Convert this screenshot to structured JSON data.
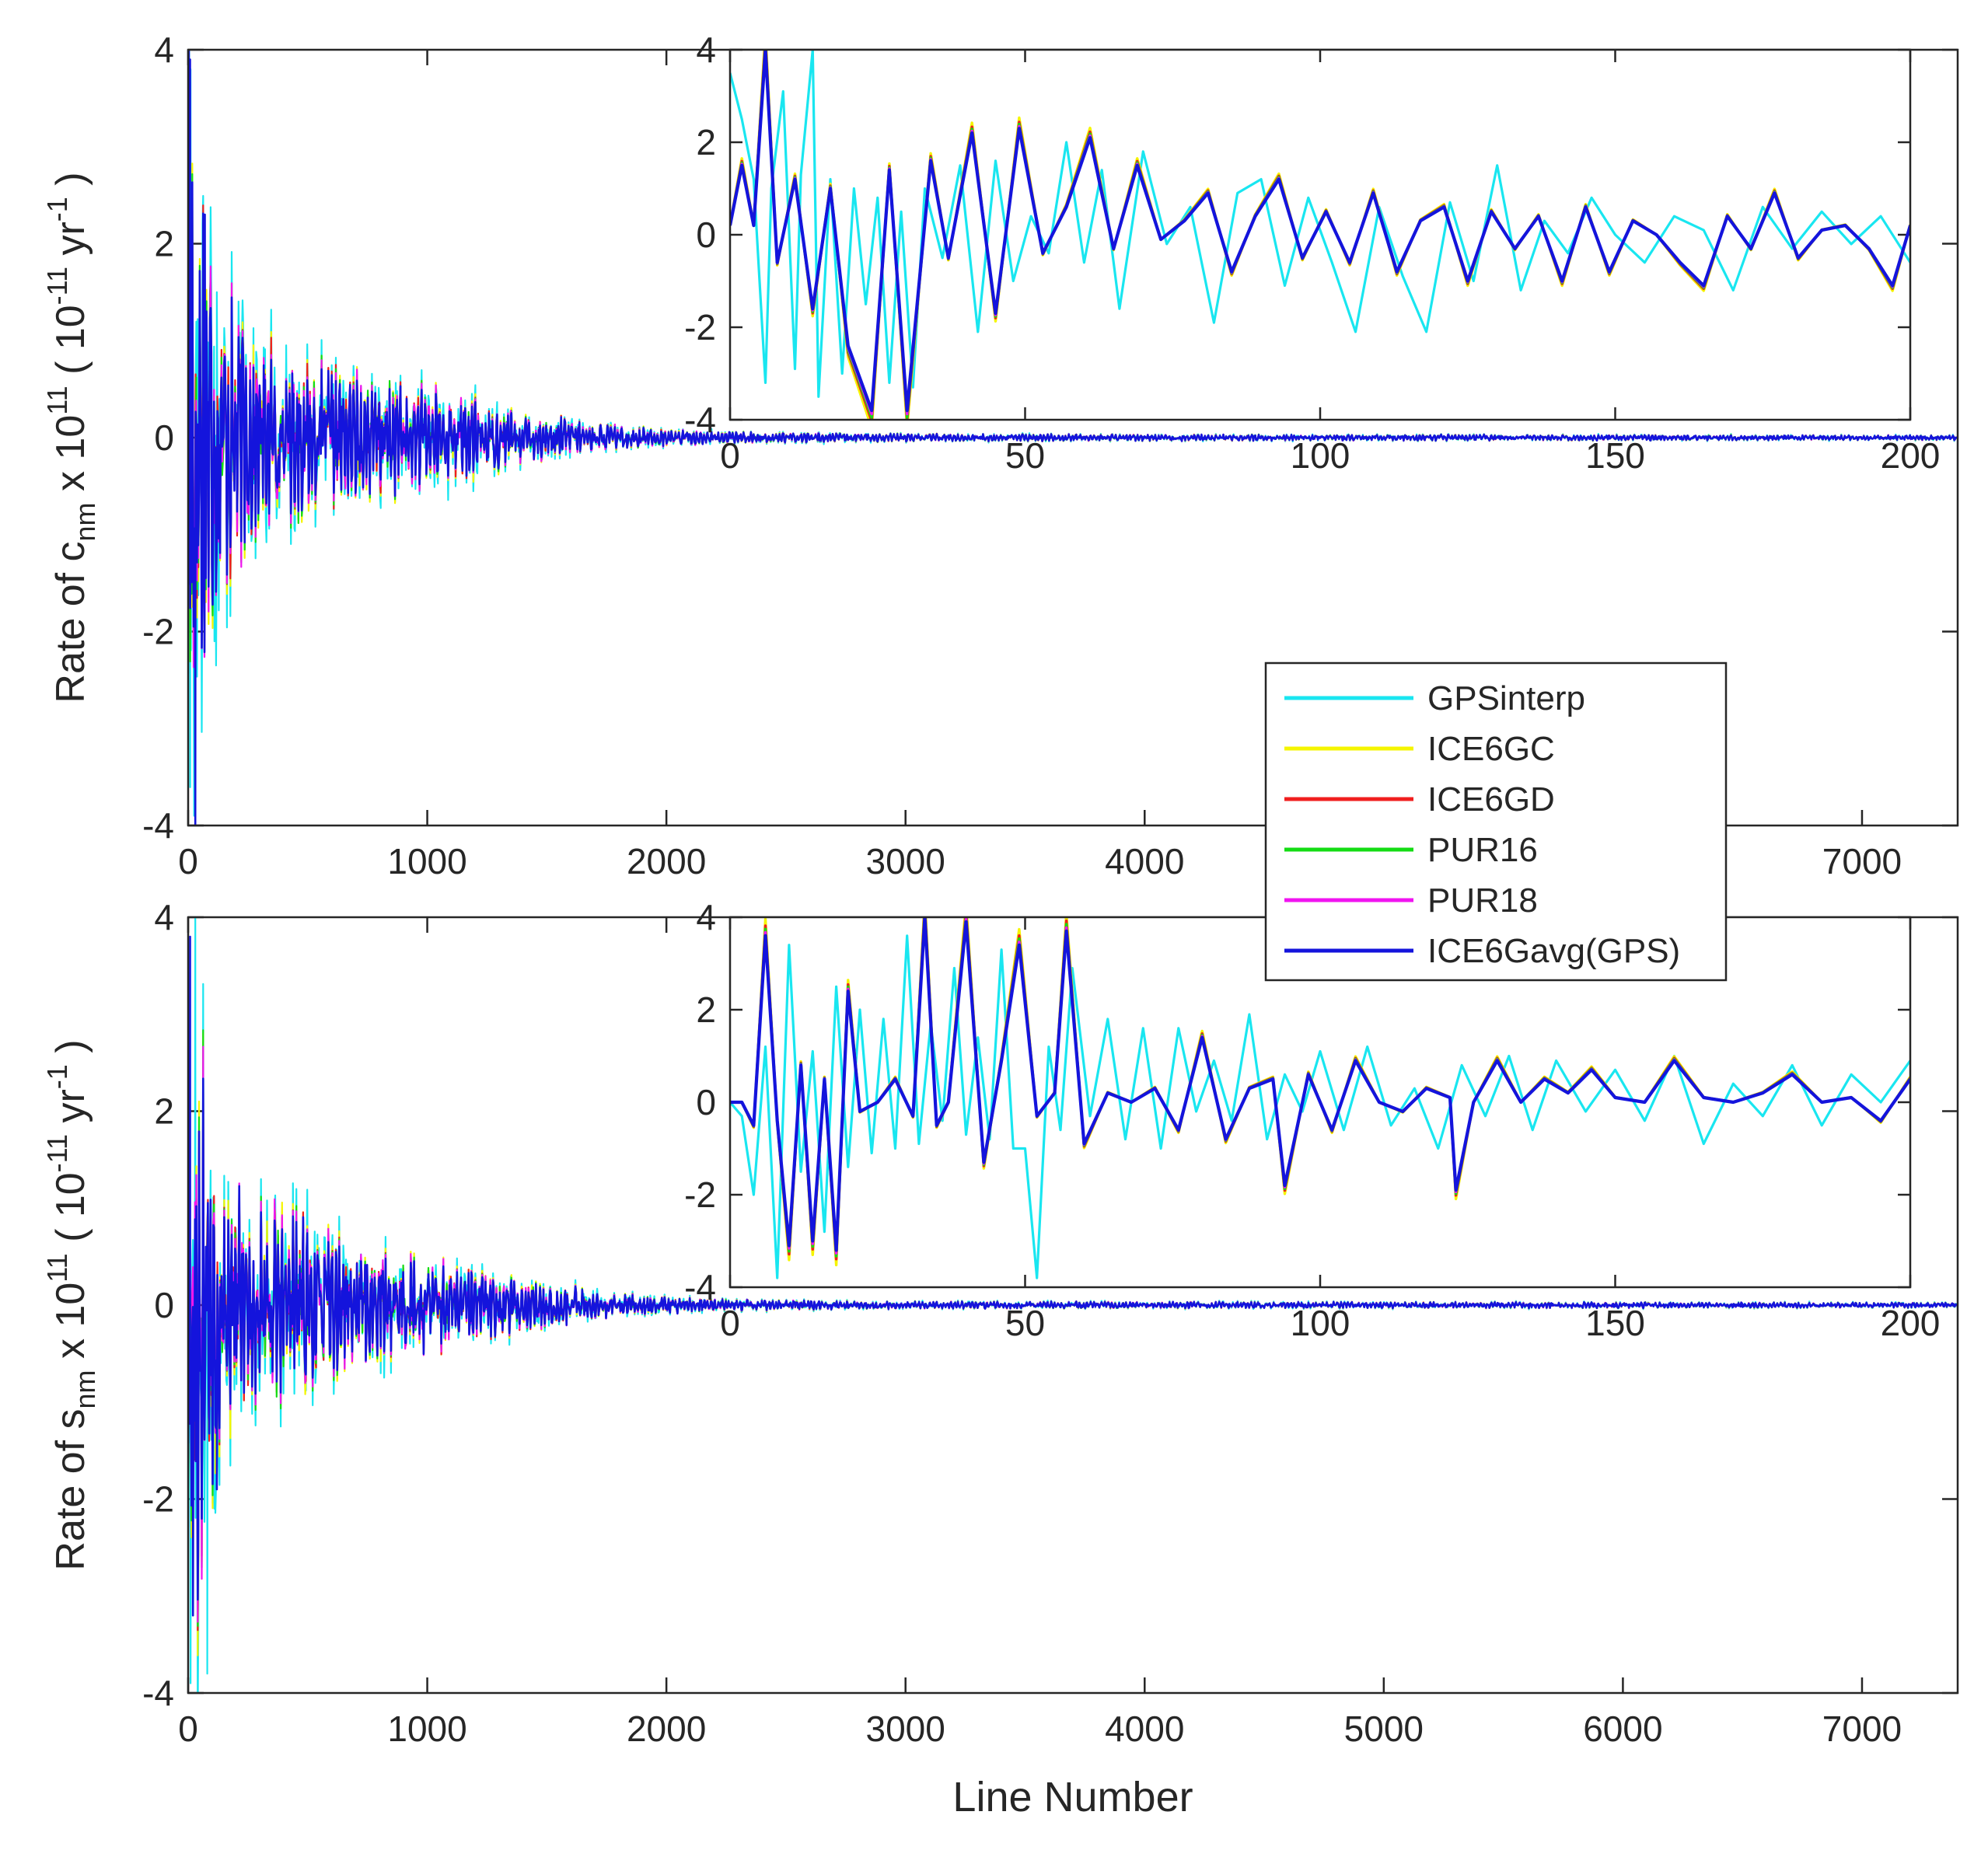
{
  "figure": {
    "xlabel": "Line Number",
    "legend": [
      {
        "name": "GPSinterp",
        "color": "#19e6f0"
      },
      {
        "name": "ICE6GC",
        "color": "#f5f500"
      },
      {
        "name": "ICE6GD",
        "color": "#f01e1e"
      },
      {
        "name": "PUR16",
        "color": "#14dc14"
      },
      {
        "name": "PUR18",
        "color": "#f014f0"
      },
      {
        "name": "ICE6Gavg(GPS)",
        "color": "#1414dc"
      }
    ]
  },
  "chart_data": [
    {
      "id": "top-main",
      "type": "line",
      "ylabel": {
        "prefix": "Rate of c",
        "sub": "nm",
        "mid": " x 10",
        "sup1": "11",
        "open": " ( 10",
        "sup2": "-11",
        "unit": " yr",
        "sup3": "-1",
        "close": " )"
      },
      "xlim": [
        0,
        7400
      ],
      "ylim": [
        -4,
        4
      ],
      "xticks": [
        0,
        1000,
        2000,
        3000,
        4000,
        5000,
        6000,
        7000
      ],
      "xtick_labels": [
        "0",
        "1000",
        "2000",
        "3000",
        "4000",
        "",
        "",
        "7000"
      ],
      "yticks": [
        -4,
        -2,
        0,
        2,
        4
      ],
      "ytick_labels": [
        "-4",
        "-2",
        "0",
        "2",
        "4"
      ],
      "envelope": [
        [
          0,
          4.0
        ],
        [
          20,
          3.4
        ],
        [
          50,
          2.4
        ],
        [
          100,
          1.8
        ],
        [
          150,
          1.3
        ],
        [
          250,
          0.9
        ],
        [
          400,
          0.7
        ],
        [
          550,
          0.62
        ],
        [
          700,
          0.52
        ],
        [
          900,
          0.46
        ],
        [
          1100,
          0.36
        ],
        [
          1300,
          0.26
        ],
        [
          1500,
          0.18
        ],
        [
          1700,
          0.12
        ],
        [
          1900,
          0.08
        ],
        [
          2200,
          0.05
        ],
        [
          3000,
          0.03
        ],
        [
          7400,
          0.02
        ]
      ],
      "series": [
        {
          "name": "GPSinterp",
          "extremes": [
            [
              10,
              3.8
            ],
            [
              25,
              -3.9
            ],
            [
              60,
              2.2
            ],
            [
              110,
              -2.1
            ],
            [
              120,
              1.5
            ]
          ]
        },
        {
          "name": "ICE6Gavg(GPS)",
          "extremes": [
            [
              8,
              3.9
            ],
            [
              30,
              -4.0
            ],
            [
              70,
              2.3
            ]
          ]
        }
      ]
    },
    {
      "id": "top-inset",
      "type": "line",
      "xlim": [
        0,
        200
      ],
      "ylim": [
        -4,
        4
      ],
      "xticks": [
        0,
        50,
        100,
        150,
        200
      ],
      "xtick_labels": [
        "0",
        "50",
        "100",
        "150",
        "200"
      ],
      "yticks": [
        -4,
        -2,
        0,
        2,
        4
      ],
      "ytick_labels": [
        "-4",
        "-2",
        "0",
        "2",
        "4"
      ],
      "series": [
        {
          "name": "ICE6Gavg(GPS)",
          "x": [
            0,
            2,
            4,
            6,
            8,
            11,
            14,
            17,
            20,
            24,
            27,
            30,
            34,
            37,
            41,
            45,
            49,
            53,
            57,
            61,
            65,
            69,
            73,
            77,
            81,
            85,
            89,
            93,
            97,
            101,
            105,
            109,
            113,
            117,
            121,
            125,
            129,
            133,
            137,
            141,
            145,
            149,
            153,
            157,
            161,
            165,
            169,
            173,
            177,
            181,
            185,
            189,
            193,
            197,
            200
          ],
          "y": [
            0.2,
            1.5,
            0.2,
            4.0,
            -0.6,
            1.2,
            -1.6,
            1.0,
            -2.4,
            -3.8,
            1.4,
            -3.8,
            1.6,
            -0.5,
            2.2,
            -1.7,
            2.3,
            -0.4,
            0.6,
            2.1,
            -0.3,
            1.5,
            -0.1,
            0.3,
            0.9,
            -0.8,
            0.4,
            1.2,
            -0.5,
            0.5,
            -0.6,
            0.9,
            -0.8,
            0.3,
            0.6,
            -1.0,
            0.5,
            -0.3,
            0.4,
            -1.0,
            0.6,
            -0.8,
            0.3,
            0.0,
            -0.6,
            -1.1,
            0.4,
            -0.3,
            0.9,
            -0.5,
            0.1,
            0.2,
            -0.3,
            -1.1,
            0.2
          ]
        },
        {
          "name": "GPSinterp",
          "x": [
            0,
            2,
            4,
            6,
            7,
            9,
            11,
            12,
            14,
            15,
            17,
            19,
            21,
            23,
            25,
            27,
            29,
            31,
            33,
            36,
            39,
            42,
            45,
            48,
            51,
            54,
            57,
            60,
            63,
            66,
            70,
            74,
            78,
            82,
            86,
            90,
            94,
            98,
            102,
            106,
            110,
            114,
            118,
            122,
            126,
            130,
            134,
            138,
            142,
            146,
            150,
            155,
            160,
            165,
            170,
            175,
            180,
            185,
            190,
            195,
            200
          ],
          "y": [
            3.5,
            2.5,
            1.2,
            -3.2,
            1.0,
            3.1,
            -2.9,
            1.3,
            4.0,
            -3.5,
            1.2,
            -3.0,
            1.0,
            -1.5,
            0.8,
            -3.2,
            0.5,
            -3.3,
            1.0,
            -0.5,
            1.5,
            -2.1,
            1.6,
            -1.0,
            0.4,
            -0.4,
            2.0,
            -0.6,
            1.4,
            -1.6,
            1.8,
            -0.2,
            0.6,
            -1.9,
            0.9,
            1.2,
            -1.1,
            0.8,
            -0.6,
            -2.1,
            0.6,
            -0.9,
            -2.1,
            0.7,
            -1.0,
            1.5,
            -1.2,
            0.3,
            -0.4,
            0.8,
            0.0,
            -0.6,
            0.4,
            0.1,
            -1.2,
            0.6,
            -0.3,
            0.5,
            -0.2,
            0.4,
            -0.6
          ]
        }
      ]
    },
    {
      "id": "bottom-main",
      "type": "line",
      "ylabel": {
        "prefix": "Rate of s",
        "sub": "nm",
        "mid": " x 10",
        "sup1": "11",
        "open": " ( 10",
        "sup2": "-11",
        "unit": " yr",
        "sup3": "-1",
        "close": " )"
      },
      "xlim": [
        0,
        7400
      ],
      "ylim": [
        -4,
        4
      ],
      "xticks": [
        0,
        1000,
        2000,
        3000,
        4000,
        5000,
        6000,
        7000
      ],
      "xtick_labels": [
        "0",
        "1000",
        "2000",
        "3000",
        "4000",
        "5000",
        "6000",
        "7000"
      ],
      "yticks": [
        -4,
        -2,
        0,
        2,
        4
      ],
      "ytick_labels": [
        "-4",
        "-2",
        "0",
        "2",
        "4"
      ],
      "envelope": [
        [
          0,
          4.0
        ],
        [
          20,
          3.6
        ],
        [
          50,
          2.6
        ],
        [
          100,
          1.5
        ],
        [
          150,
          1.1
        ],
        [
          250,
          0.9
        ],
        [
          400,
          0.85
        ],
        [
          550,
          0.62
        ],
        [
          700,
          0.48
        ],
        [
          900,
          0.42
        ],
        [
          1100,
          0.34
        ],
        [
          1300,
          0.26
        ],
        [
          1500,
          0.18
        ],
        [
          1700,
          0.12
        ],
        [
          1900,
          0.08
        ],
        [
          2200,
          0.05
        ],
        [
          3000,
          0.03
        ],
        [
          7400,
          0.02
        ]
      ],
      "series": [
        {
          "name": "GPSinterp",
          "extremes": [
            [
              10,
              -3.9
            ],
            [
              30,
              4.0
            ],
            [
              80,
              -3.8
            ],
            [
              110,
              -2.1
            ]
          ]
        },
        {
          "name": "ICE6Gavg(GPS)",
          "extremes": [
            [
              8,
              3.8
            ],
            [
              20,
              -3.2
            ],
            [
              120,
              -1.9
            ]
          ]
        }
      ]
    },
    {
      "id": "bottom-inset",
      "type": "line",
      "xlim": [
        0,
        200
      ],
      "ylim": [
        -4,
        4
      ],
      "xticks": [
        0,
        50,
        100,
        150,
        200
      ],
      "xtick_labels": [
        "0",
        "50",
        "100",
        "150",
        "200"
      ],
      "yticks": [
        -4,
        -2,
        0,
        2,
        4
      ],
      "ytick_labels": [
        "-4",
        "-2",
        "0",
        "2",
        "4"
      ],
      "series": [
        {
          "name": "ICE6Gavg(GPS)",
          "x": [
            0,
            2,
            4,
            6,
            8,
            10,
            12,
            14,
            16,
            18,
            20,
            22,
            25,
            28,
            31,
            33,
            35,
            37,
            40,
            43,
            46,
            49,
            52,
            55,
            57,
            60,
            64,
            68,
            72,
            76,
            80,
            84,
            88,
            92,
            94,
            98,
            102,
            106,
            110,
            114,
            118,
            122,
            123,
            126,
            130,
            134,
            138,
            142,
            146,
            150,
            155,
            160,
            165,
            170,
            175,
            180,
            185,
            190,
            195,
            200
          ],
          "y": [
            0.0,
            0.0,
            -0.5,
            3.6,
            -0.4,
            -3.1,
            0.8,
            -3.0,
            0.5,
            -3.2,
            2.4,
            -0.2,
            0.0,
            0.5,
            -0.3,
            4.0,
            -0.5,
            0.0,
            3.9,
            -1.3,
            0.9,
            3.4,
            -0.3,
            0.2,
            3.7,
            -0.9,
            0.2,
            0.0,
            0.3,
            -0.6,
            1.4,
            -0.8,
            0.3,
            0.5,
            -1.8,
            0.6,
            -0.6,
            0.9,
            0.0,
            -0.2,
            0.3,
            0.1,
            -1.9,
            0.0,
            0.9,
            0.0,
            0.5,
            0.2,
            0.7,
            0.1,
            0.0,
            0.9,
            0.1,
            0.0,
            0.2,
            0.6,
            0.0,
            0.1,
            -0.4,
            0.5
          ]
        },
        {
          "name": "GPSinterp",
          "x": [
            0,
            2,
            4,
            6,
            8,
            10,
            12,
            14,
            16,
            18,
            20,
            22,
            24,
            26,
            28,
            30,
            32,
            34,
            36,
            38,
            40,
            42,
            44,
            46,
            48,
            50,
            52,
            54,
            56,
            58,
            61,
            64,
            67,
            70,
            73,
            76,
            79,
            82,
            85,
            88,
            91,
            94,
            97,
            100,
            104,
            108,
            112,
            116,
            120,
            124,
            128,
            132,
            136,
            140,
            145,
            150,
            155,
            160,
            165,
            170,
            175,
            180,
            185,
            190,
            195,
            200
          ],
          "y": [
            0.0,
            -0.3,
            -2.0,
            1.2,
            -3.8,
            3.4,
            -1.5,
            1.1,
            -2.8,
            2.5,
            -1.4,
            2.0,
            -1.1,
            1.8,
            -1.0,
            3.6,
            -0.9,
            1.7,
            -0.4,
            2.9,
            -0.7,
            1.4,
            -0.8,
            3.3,
            -1.0,
            -1.0,
            -3.8,
            1.2,
            -0.6,
            2.9,
            -0.3,
            1.8,
            -0.8,
            1.6,
            -1.0,
            1.6,
            -0.2,
            0.9,
            -0.4,
            1.9,
            -0.8,
            0.6,
            -0.2,
            1.1,
            -0.6,
            1.2,
            -0.5,
            0.3,
            -1.0,
            0.8,
            -0.3,
            1.0,
            -0.6,
            0.9,
            -0.2,
            0.7,
            -0.4,
            1.0,
            -0.9,
            0.4,
            -0.3,
            0.8,
            -0.5,
            0.6,
            0.0,
            0.9
          ]
        }
      ]
    }
  ]
}
